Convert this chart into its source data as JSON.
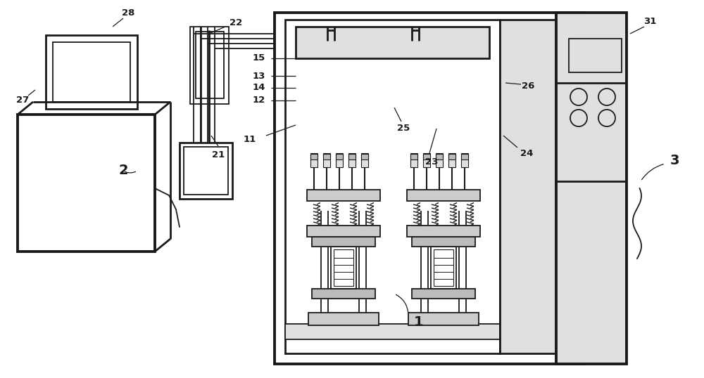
{
  "bg": "#ffffff",
  "lc": "#1a1a1a",
  "lw": 1.3,
  "lw2": 2.0,
  "lw3": 2.8,
  "gray1": "#cccccc",
  "gray2": "#e0e0e0",
  "gray3": "#bbbbbb"
}
